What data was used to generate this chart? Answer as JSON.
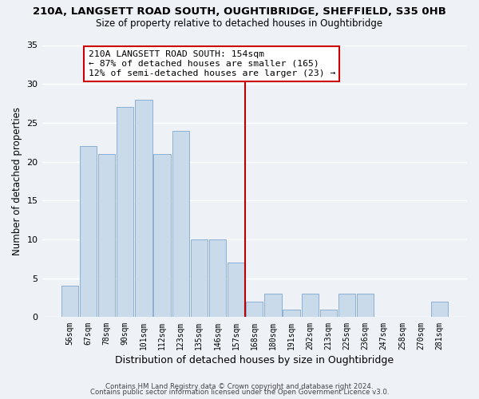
{
  "title": "210A, LANGSETT ROAD SOUTH, OUGHTIBRIDGE, SHEFFIELD, S35 0HB",
  "subtitle": "Size of property relative to detached houses in Oughtibridge",
  "xlabel": "Distribution of detached houses by size in Oughtibridge",
  "ylabel": "Number of detached properties",
  "bar_labels": [
    "56sqm",
    "67sqm",
    "78sqm",
    "90sqm",
    "101sqm",
    "112sqm",
    "123sqm",
    "135sqm",
    "146sqm",
    "157sqm",
    "168sqm",
    "180sqm",
    "191sqm",
    "202sqm",
    "213sqm",
    "225sqm",
    "236sqm",
    "247sqm",
    "258sqm",
    "270sqm",
    "281sqm"
  ],
  "bar_values": [
    4,
    22,
    21,
    27,
    28,
    21,
    24,
    10,
    10,
    7,
    2,
    3,
    1,
    3,
    1,
    3,
    3,
    0,
    0,
    0,
    2
  ],
  "bar_color": "#c9daea",
  "bar_edgecolor": "#8bafd4",
  "background_color": "#eef2f7",
  "grid_color": "#ffffff",
  "vline_x": 9.5,
  "vline_color": "#bb0000",
  "annotation_text": "210A LANGSETT ROAD SOUTH: 154sqm\n← 87% of detached houses are smaller (165)\n12% of semi-detached houses are larger (23) →",
  "annotation_box_edgecolor": "#cc0000",
  "annotation_box_facecolor": "#ffffff",
  "ylim": [
    0,
    35
  ],
  "yticks": [
    0,
    5,
    10,
    15,
    20,
    25,
    30,
    35
  ],
  "footer_line1": "Contains HM Land Registry data © Crown copyright and database right 2024.",
  "footer_line2": "Contains public sector information licensed under the Open Government Licence v3.0."
}
